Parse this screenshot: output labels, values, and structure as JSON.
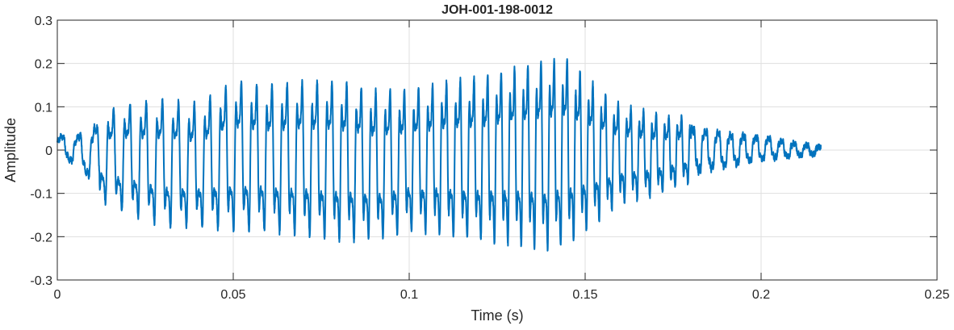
{
  "chart_data": {
    "type": "line",
    "title": "JOH-001-198-0012",
    "xlabel": "Time (s)",
    "ylabel": "Amplitude",
    "xlim": [
      0,
      0.25
    ],
    "ylim": [
      -0.3,
      0.3
    ],
    "xticks": [
      0,
      0.05,
      0.1,
      0.15,
      0.2,
      0.25
    ],
    "xtick_labels": [
      "0",
      "0.05",
      "0.1",
      "0.15",
      "0.2",
      "0.25"
    ],
    "yticks": [
      -0.3,
      -0.2,
      -0.1,
      0,
      0.1,
      0.2,
      0.3
    ],
    "ytick_labels": [
      "-0.3",
      "-0.2",
      "-0.1",
      "0",
      "0.1",
      "0.2",
      "0.3"
    ],
    "grid": true,
    "line_color": "#0072BD",
    "series": [
      {
        "kind": "oscillating waveform",
        "t_start": 0,
        "t_end": 0.217,
        "envelope": {
          "t": [
            0,
            0.005,
            0.012,
            0.02,
            0.03,
            0.04,
            0.05,
            0.06,
            0.07,
            0.08,
            0.09,
            0.1,
            0.11,
            0.12,
            0.13,
            0.14,
            0.145,
            0.15,
            0.16,
            0.17,
            0.18,
            0.19,
            0.2,
            0.21,
            0.217
          ],
          "max": [
            0.04,
            0.04,
            0.08,
            0.1,
            0.11,
            0.1,
            0.15,
            0.14,
            0.15,
            0.15,
            0.13,
            0.13,
            0.15,
            0.16,
            0.18,
            0.2,
            0.2,
            0.16,
            0.1,
            0.08,
            0.07,
            0.05,
            0.04,
            0.02,
            0.01
          ],
          "min": [
            -0.02,
            -0.04,
            -0.11,
            -0.14,
            -0.17,
            -0.17,
            -0.18,
            -0.18,
            -0.19,
            -0.2,
            -0.2,
            -0.18,
            -0.19,
            -0.2,
            -0.21,
            -0.22,
            -0.21,
            -0.18,
            -0.12,
            -0.1,
            -0.07,
            -0.05,
            -0.03,
            -0.02,
            -0.01
          ]
        },
        "period_s": [
          0.0048,
          0.0036
        ]
      }
    ]
  }
}
